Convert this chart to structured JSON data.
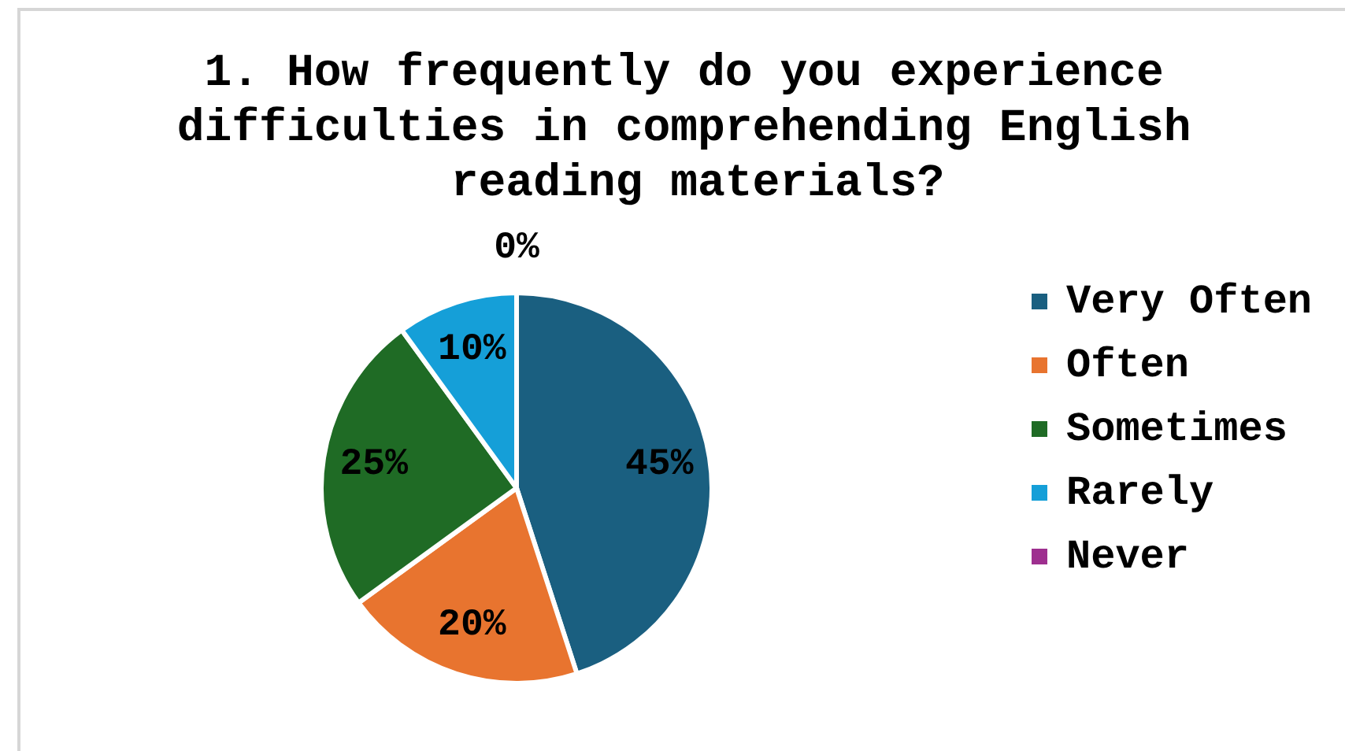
{
  "chart_data": {
    "type": "pie",
    "title": "1. How frequently do you experience difficulties in comprehending English reading materials?",
    "categories": [
      "Very Often",
      "Often",
      "Sometimes",
      "Rarely",
      "Never"
    ],
    "values": [
      45,
      20,
      25,
      10,
      0
    ],
    "colors": [
      "#1a5f80",
      "#e8742f",
      "#1f6b25",
      "#159fd8",
      "#9e2f8f"
    ],
    "value_labels": [
      "45%",
      "20%",
      "25%",
      "10%",
      "0%"
    ],
    "legend": "right"
  }
}
